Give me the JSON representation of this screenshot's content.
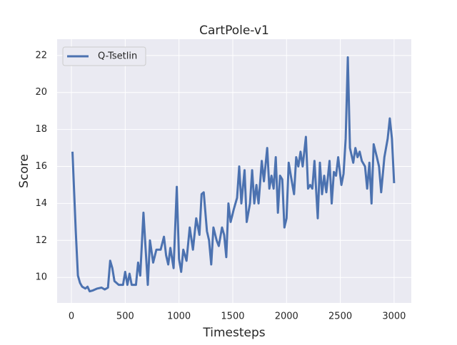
{
  "chart_data": {
    "type": "line",
    "title": "CartPole-v1",
    "x_label": "Timesteps",
    "y_label": "Score",
    "x": [
      10,
      40,
      60,
      80,
      100,
      130,
      150,
      170,
      200,
      240,
      280,
      310,
      340,
      360,
      380,
      400,
      440,
      480,
      500,
      520,
      540,
      560,
      600,
      620,
      640,
      670,
      690,
      710,
      730,
      760,
      790,
      830,
      860,
      880,
      900,
      920,
      950,
      980,
      1000,
      1020,
      1040,
      1070,
      1100,
      1130,
      1160,
      1190,
      1210,
      1230,
      1260,
      1280,
      1300,
      1320,
      1350,
      1370,
      1400,
      1420,
      1440,
      1460,
      1480,
      1510,
      1540,
      1560,
      1580,
      1610,
      1630,
      1660,
      1680,
      1700,
      1720,
      1740,
      1770,
      1790,
      1820,
      1840,
      1860,
      1880,
      1900,
      1920,
      1940,
      1960,
      1980,
      2000,
      2020,
      2040,
      2070,
      2090,
      2110,
      2130,
      2150,
      2180,
      2200,
      2220,
      2240,
      2260,
      2290,
      2310,
      2330,
      2350,
      2370,
      2400,
      2420,
      2440,
      2460,
      2480,
      2510,
      2530,
      2550,
      2570,
      2590,
      2620,
      2640,
      2660,
      2680,
      2700,
      2730,
      2750,
      2770,
      2790,
      2810,
      2840,
      2860,
      2880,
      2910,
      2940,
      2960,
      2980,
      3000
    ],
    "series": [
      {
        "name": "Q-Tsetlin",
        "color": "#4c72b0",
        "values": [
          16.8,
          12.5,
          10.1,
          9.7,
          9.5,
          9.4,
          9.5,
          9.25,
          9.3,
          9.4,
          9.45,
          9.35,
          9.45,
          10.9,
          10.5,
          9.8,
          9.6,
          9.6,
          10.3,
          9.6,
          10.2,
          9.6,
          9.6,
          10.8,
          10.1,
          13.5,
          11.5,
          9.6,
          12.0,
          10.8,
          11.5,
          11.5,
          12.2,
          11.2,
          10.7,
          11.6,
          10.5,
          14.9,
          11.0,
          10.3,
          11.5,
          10.9,
          12.7,
          11.5,
          13.2,
          12.3,
          14.5,
          14.6,
          12.5,
          12.0,
          10.7,
          12.7,
          12.0,
          11.7,
          12.7,
          12.3,
          11.1,
          14.0,
          13.0,
          13.7,
          14.3,
          16.0,
          14.0,
          15.8,
          13.0,
          14.0,
          15.8,
          14.0,
          15.0,
          14.0,
          16.3,
          15.2,
          17.0,
          14.8,
          15.5,
          14.8,
          16.5,
          13.5,
          15.5,
          15.3,
          12.7,
          13.2,
          16.2,
          15.5,
          14.5,
          16.5,
          16.0,
          16.8,
          16.0,
          17.6,
          14.8,
          15.0,
          14.8,
          16.3,
          13.2,
          16.2,
          14.5,
          15.5,
          14.6,
          16.3,
          14.0,
          15.7,
          15.5,
          16.5,
          15.0,
          15.6,
          17.5,
          21.9,
          17.0,
          16.2,
          17.0,
          16.5,
          16.8,
          16.3,
          16.0,
          14.8,
          16.2,
          14.0,
          17.2,
          16.5,
          16.0,
          14.6,
          16.5,
          17.5,
          18.6,
          17.5,
          15.1
        ]
      }
    ],
    "xlim": [
      -133,
      3160
    ],
    "ylim": [
      8.62,
      22.88
    ],
    "xticks": [
      0,
      500,
      1000,
      1500,
      2000,
      2500,
      3000
    ],
    "yticks": [
      10,
      12,
      14,
      16,
      18,
      20,
      22
    ],
    "grid": true,
    "legend": "upper left"
  }
}
